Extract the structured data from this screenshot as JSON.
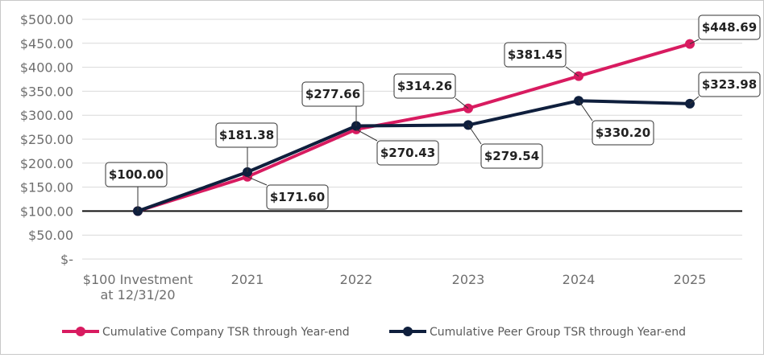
{
  "chart_data": {
    "type": "line",
    "categories": [
      "$100 Investment at 12/31/20",
      "2021",
      "2022",
      "2023",
      "2024",
      "2025"
    ],
    "category_lines": [
      [
        "$100 Investment",
        "at 12/31/20"
      ],
      [
        "2021"
      ],
      [
        "2022"
      ],
      [
        "2023"
      ],
      [
        "2024"
      ],
      [
        "2025"
      ]
    ],
    "ylim": [
      0,
      500
    ],
    "yticks": [
      0,
      50,
      100,
      150,
      200,
      250,
      300,
      350,
      400,
      450,
      500
    ],
    "ytick_labels": [
      "$-",
      "$50.00",
      "$100.00",
      "$150.00",
      "$200.00",
      "$250.00",
      "$300.00",
      "$350.00",
      "$400.00",
      "$450.00",
      "$500.00"
    ],
    "baseline": 100,
    "grid": true,
    "legend_position": "bottom",
    "series": [
      {
        "name": "Cumulative Company TSR through Year-end",
        "color": "#d81b60",
        "values": [
          100.0,
          171.6,
          270.43,
          314.26,
          381.45,
          448.69
        ],
        "labels": [
          "",
          "$171.60",
          "$270.43",
          "$314.26",
          "$381.45",
          "$448.69"
        ]
      },
      {
        "name": "Cumulative Peer Group TSR through Year-end",
        "color": "#0f1f3d",
        "values": [
          100.0,
          181.38,
          277.66,
          279.54,
          330.2,
          323.98
        ],
        "labels": [
          "$100.00",
          "$181.38",
          "$277.66",
          "$279.54",
          "$330.20",
          "$323.98"
        ]
      }
    ]
  }
}
